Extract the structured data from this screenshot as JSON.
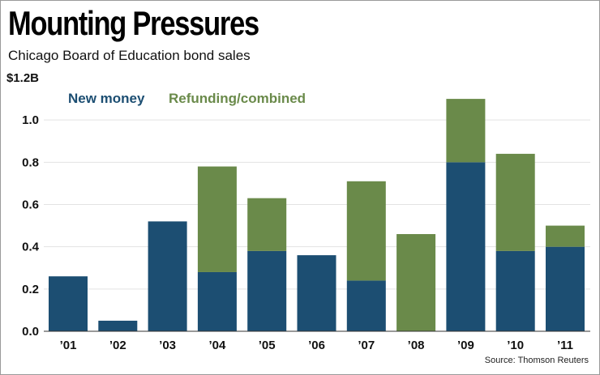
{
  "header": {
    "title": "Mounting Pressures",
    "subtitle": "Chicago Board of Education bond sales"
  },
  "footer": {
    "source": "Source: Thomson Reuters"
  },
  "colors": {
    "new_money": "#1c4e72",
    "refunding": "#6a8a4a",
    "gridline": "#e3e3e3",
    "axis": "#333333"
  },
  "chart_data": {
    "type": "bar",
    "stacked": true,
    "title": "Mounting Pressures",
    "subtitle": "Chicago Board of Education bond sales",
    "xlabel": "",
    "ylabel": "",
    "ylim": [
      0,
      1.2
    ],
    "yticks": [
      0.0,
      0.2,
      0.4,
      0.6,
      0.8,
      1.0,
      1.2
    ],
    "ytick_labels": [
      "0.0",
      "0.2",
      "0.4",
      "0.6",
      "0.8",
      "1.0",
      "$1.2B"
    ],
    "categories": [
      "’01",
      "’02",
      "’03",
      "’04",
      "’05",
      "’06",
      "’07",
      "’08",
      "’09",
      "’10",
      "’11"
    ],
    "series": [
      {
        "name": "New money",
        "values": [
          0.26,
          0.05,
          0.52,
          0.28,
          0.38,
          0.36,
          0.24,
          0.0,
          0.8,
          0.38,
          0.4
        ]
      },
      {
        "name": "Refunding/combined",
        "values": [
          0.0,
          0.0,
          0.0,
          0.5,
          0.25,
          0.0,
          0.47,
          0.46,
          0.3,
          0.46,
          0.1
        ]
      }
    ],
    "legend_position": "top-left",
    "grid": true
  }
}
